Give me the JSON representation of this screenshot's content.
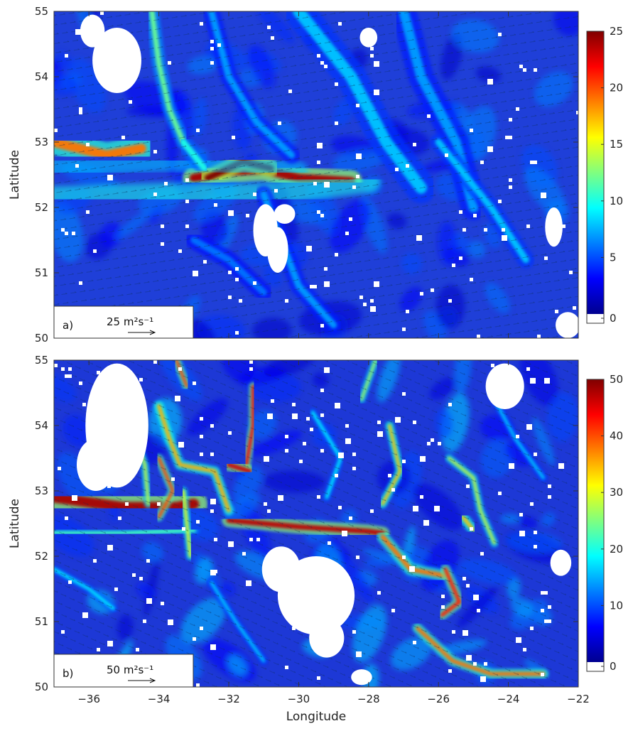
{
  "chart_data": [
    {
      "type": "heatmap",
      "panel_label": "a)",
      "xlabel": "",
      "ylabel": "Latitude",
      "xlim": [
        -37,
        -22
      ],
      "ylim": [
        50,
        55
      ],
      "x_ticks": [
        -36,
        -34,
        -32,
        -30,
        -28,
        -26,
        -24,
        -22
      ],
      "y_ticks": [
        50,
        51,
        52,
        53,
        54,
        55
      ],
      "show_x_tick_labels": false,
      "colorbar": {
        "range": [
          0,
          25
        ],
        "ticks": [
          0,
          5,
          10,
          15,
          20,
          25
        ],
        "colormap": "jet",
        "below_min_color": "#ffffff"
      },
      "reference_vector": {
        "magnitude": 25,
        "label": "25 m²s⁻¹"
      },
      "features": [
        {
          "kind": "jet",
          "points": [
            [
              -37,
              53.0
            ],
            [
              -35.5,
              52.8
            ],
            [
              -34.5,
              52.9
            ]
          ],
          "value": 19,
          "width": 0.15
        },
        {
          "kind": "jet",
          "points": [
            [
              -33.0,
              52.45
            ],
            [
              -32.0,
              52.55
            ],
            [
              -31.0,
              52.58
            ],
            [
              -30.0,
              52.45
            ],
            [
              -28.5,
              52.4
            ]
          ],
          "value": 24,
          "width": 0.13
        },
        {
          "kind": "jet",
          "points": [
            [
              -32.6,
              52.45
            ],
            [
              -31.6,
              52.7
            ],
            [
              -30.8,
              52.6
            ]
          ],
          "value": 25,
          "width": 0.1
        },
        {
          "kind": "band",
          "points": [
            [
              -37,
              52.15
            ],
            [
              -34,
              52.2
            ],
            [
              -31,
              52.2
            ],
            [
              -28,
              52.4
            ]
          ],
          "value": 10,
          "width": 0.35
        },
        {
          "kind": "band",
          "points": [
            [
              -37,
              52.6
            ],
            [
              -34,
              52.7
            ],
            [
              -32.5,
              52.7
            ],
            [
              -30,
              52.55
            ]
          ],
          "value": 8,
          "width": 0.3
        },
        {
          "kind": "filament",
          "points": [
            [
              -34.2,
              55
            ],
            [
              -34.0,
              54.2
            ],
            [
              -33.7,
              53.5
            ],
            [
              -33.3,
              53.0
            ]
          ],
          "value": 12,
          "width": 0.08
        },
        {
          "kind": "filament",
          "points": [
            [
              -33.3,
              53.0
            ],
            [
              -32.7,
              52.6
            ]
          ],
          "value": 10,
          "width": 0.1
        },
        {
          "kind": "filament",
          "points": [
            [
              -32.5,
              55
            ],
            [
              -32.0,
              54.0
            ],
            [
              -31.2,
              53.3
            ],
            [
              -30.2,
              52.8
            ]
          ],
          "value": 7,
          "width": 0.1
        },
        {
          "kind": "filament",
          "points": [
            [
              -30.0,
              55
            ],
            [
              -28.5,
              54.0
            ],
            [
              -27.5,
              53.0
            ],
            [
              -26.5,
              52.3
            ]
          ],
          "value": 8,
          "width": 0.18
        },
        {
          "kind": "filament",
          "points": [
            [
              -27.0,
              55
            ],
            [
              -26.5,
              54.0
            ],
            [
              -25.5,
              53.0
            ],
            [
              -25.0,
              52.0
            ]
          ],
          "value": 7,
          "width": 0.15
        },
        {
          "kind": "filament",
          "points": [
            [
              -26.0,
              53.0
            ],
            [
              -24.5,
              52.0
            ],
            [
              -23.5,
              51.2
            ]
          ],
          "value": 8,
          "width": 0.1
        },
        {
          "kind": "filament",
          "points": [
            [
              -31.0,
              52.2
            ],
            [
              -30.5,
              51.5
            ],
            [
              -30.0,
              50.8
            ],
            [
              -29.0,
              50.2
            ]
          ],
          "value": 7,
          "width": 0.1
        },
        {
          "kind": "filament",
          "points": [
            [
              -33.0,
              51.5
            ],
            [
              -32.0,
              51.2
            ],
            [
              -31.0,
              50.7
            ]
          ],
          "value": 6,
          "width": 0.1
        }
      ],
      "missing_regions": [
        {
          "center": [
            -35.2,
            54.25
          ],
          "radius": [
            0.7,
            0.5
          ]
        },
        {
          "center": [
            -35.9,
            54.7
          ],
          "radius": [
            0.35,
            0.25
          ]
        },
        {
          "center": [
            -30.95,
            51.65
          ],
          "radius": [
            0.35,
            0.4
          ]
        },
        {
          "center": [
            -30.6,
            51.35
          ],
          "radius": [
            0.3,
            0.35
          ]
        },
        {
          "center": [
            -30.4,
            51.9
          ],
          "radius": [
            0.3,
            0.15
          ]
        },
        {
          "center": [
            -28.0,
            54.6
          ],
          "radius": [
            0.25,
            0.15
          ]
        },
        {
          "center": [
            -22.7,
            51.7
          ],
          "radius": [
            0.25,
            0.3
          ]
        },
        {
          "center": [
            -22.3,
            50.2
          ],
          "radius": [
            0.35,
            0.2
          ]
        }
      ]
    },
    {
      "type": "heatmap",
      "panel_label": "b)",
      "xlabel": "Longitude",
      "ylabel": "Latitude",
      "xlim": [
        -37,
        -22
      ],
      "ylim": [
        50,
        55
      ],
      "x_ticks": [
        -36,
        -34,
        -32,
        -30,
        -28,
        -26,
        -24,
        -22
      ],
      "y_ticks": [
        50,
        51,
        52,
        53,
        54,
        55
      ],
      "show_x_tick_labels": true,
      "colorbar": {
        "range": [
          0,
          50
        ],
        "ticks": [
          0,
          10,
          20,
          30,
          40,
          50
        ],
        "colormap": "jet",
        "below_min_color": "#ffffff"
      },
      "reference_vector": {
        "magnitude": 50,
        "label": "50 m²s⁻¹"
      },
      "features": [
        {
          "kind": "jet",
          "points": [
            [
              -37,
              52.9
            ],
            [
              -35.0,
              52.75
            ],
            [
              -33.5,
              52.75
            ],
            [
              -33.0,
              52.8
            ]
          ],
          "value": 48,
          "width": 0.16
        },
        {
          "kind": "jet",
          "points": [
            [
              -32.0,
              52.55
            ],
            [
              -30.0,
              52.45
            ],
            [
              -28.0,
              52.38
            ],
            [
              -27.6,
              52.35
            ]
          ],
          "value": 47,
          "width": 0.08
        },
        {
          "kind": "filament",
          "points": [
            [
              -27.6,
              52.3
            ],
            [
              -26.8,
              51.8
            ],
            [
              -25.8,
              51.7
            ]
          ],
          "value": 38,
          "width": 0.07
        },
        {
          "kind": "filament",
          "points": [
            [
              -25.8,
              51.8
            ],
            [
              -25.4,
              51.3
            ],
            [
              -25.9,
              51.1
            ]
          ],
          "value": 42,
          "width": 0.06
        },
        {
          "kind": "filament",
          "points": [
            [
              -26.6,
              50.9
            ],
            [
              -25.6,
              50.4
            ],
            [
              -24.5,
              50.2
            ],
            [
              -23.0,
              50.2
            ]
          ],
          "value": 38,
          "width": 0.06
        },
        {
          "kind": "filament",
          "points": [
            [
              -31.3,
              54.6
            ],
            [
              -31.3,
              54.0
            ],
            [
              -31.5,
              53.4
            ]
          ],
          "value": 44,
          "width": 0.05
        },
        {
          "kind": "filament",
          "points": [
            [
              -32.0,
              53.4
            ],
            [
              -31.4,
              53.3
            ]
          ],
          "value": 46,
          "width": 0.07
        },
        {
          "kind": "filament",
          "points": [
            [
              -34.0,
              54.3
            ],
            [
              -33.7,
              53.8
            ],
            [
              -33.4,
              53.4
            ],
            [
              -32.4,
              53.3
            ],
            [
              -32.0,
              52.7
            ]
          ],
          "value": 35,
          "width": 0.06
        },
        {
          "kind": "filament",
          "points": [
            [
              -33.5,
              55
            ],
            [
              -33.2,
              54.6
            ]
          ],
          "value": 40,
          "width": 0.05
        },
        {
          "kind": "filament",
          "points": [
            [
              -34.0,
              53.5
            ],
            [
              -33.6,
              53.0
            ],
            [
              -34.0,
              52.6
            ]
          ],
          "value": 40,
          "width": 0.05
        },
        {
          "kind": "filament",
          "points": [
            [
              -34.8,
              54.0
            ],
            [
              -34.4,
              53.4
            ],
            [
              -34.3,
              52.8
            ]
          ],
          "value": 28,
          "width": 0.05
        },
        {
          "kind": "filament",
          "points": [
            [
              -37,
              52.35
            ],
            [
              -35.0,
              52.35
            ],
            [
              -33.0,
              52.4
            ]
          ],
          "value": 22,
          "width": 0.07
        },
        {
          "kind": "filament",
          "points": [
            [
              -33.3,
              53.0
            ],
            [
              -33.2,
              52.5
            ],
            [
              -33.1,
              52.0
            ]
          ],
          "value": 30,
          "width": 0.05
        },
        {
          "kind": "filament",
          "points": [
            [
              -27.4,
              54.0
            ],
            [
              -27.1,
              53.3
            ],
            [
              -27.6,
              52.8
            ]
          ],
          "value": 34,
          "width": 0.05
        },
        {
          "kind": "filament",
          "points": [
            [
              -25.7,
              53.5
            ],
            [
              -25.0,
              53.2
            ],
            [
              -24.8,
              52.7
            ],
            [
              -24.4,
              52.2
            ]
          ],
          "value": 28,
          "width": 0.05
        },
        {
          "kind": "filament",
          "points": [
            [
              -25.3,
              52.6
            ],
            [
              -25.0,
              52.4
            ]
          ],
          "value": 34,
          "width": 0.06
        },
        {
          "kind": "filament",
          "points": [
            [
              -27.8,
              55
            ],
            [
              -28.2,
              54.4
            ]
          ],
          "value": 26,
          "width": 0.05
        },
        {
          "kind": "filament",
          "points": [
            [
              -22.8,
              52.25
            ],
            [
              -22.2,
              52.25
            ]
          ],
          "value": 32,
          "width": 0.04
        },
        {
          "kind": "filament",
          "points": [
            [
              -37,
              51.8
            ],
            [
              -36.0,
              51.5
            ],
            [
              -35.3,
              51.2
            ]
          ],
          "value": 18,
          "width": 0.05
        },
        {
          "kind": "filament",
          "points": [
            [
              -29.6,
              54.2
            ],
            [
              -28.8,
              53.5
            ],
            [
              -29.2,
              52.9
            ]
          ],
          "value": 18,
          "width": 0.05
        },
        {
          "kind": "filament",
          "points": [
            [
              -24.5,
              54.5
            ],
            [
              -23.8,
              53.8
            ],
            [
              -23.0,
              53.2
            ]
          ],
          "value": 16,
          "width": 0.05
        },
        {
          "kind": "filament",
          "points": [
            [
              -32.5,
              51.6
            ],
            [
              -31.8,
              51.0
            ],
            [
              -31.0,
              50.4
            ]
          ],
          "value": 16,
          "width": 0.05
        }
      ],
      "missing_regions": [
        {
          "center": [
            -35.2,
            54.0
          ],
          "radius": [
            0.9,
            0.95
          ]
        },
        {
          "center": [
            -35.8,
            53.4
          ],
          "radius": [
            0.55,
            0.4
          ]
        },
        {
          "center": [
            -29.5,
            51.4
          ],
          "radius": [
            1.1,
            0.6
          ]
        },
        {
          "center": [
            -30.5,
            51.8
          ],
          "radius": [
            0.55,
            0.35
          ]
        },
        {
          "center": [
            -29.2,
            50.75
          ],
          "radius": [
            0.5,
            0.3
          ]
        },
        {
          "center": [
            -24.1,
            54.6
          ],
          "radius": [
            0.55,
            0.35
          ]
        },
        {
          "center": [
            -22.5,
            51.9
          ],
          "radius": [
            0.3,
            0.2
          ]
        },
        {
          "center": [
            -28.2,
            50.15
          ],
          "radius": [
            0.3,
            0.12
          ]
        }
      ]
    }
  ]
}
